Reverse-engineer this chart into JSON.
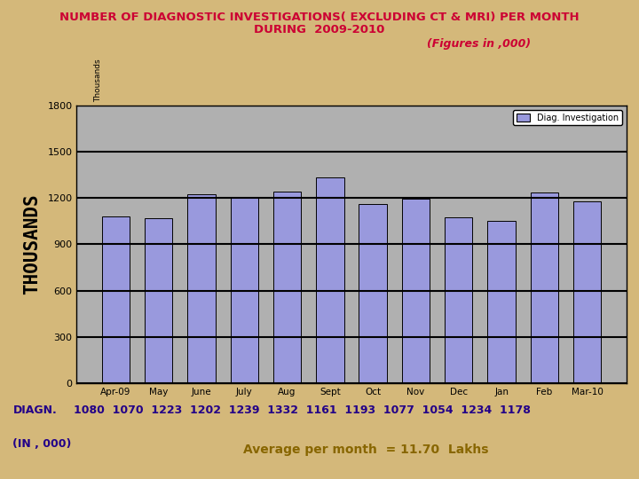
{
  "title_line1": "NUMBER OF DIAGNOSTIC INVESTIGATIONS( EXCLUDING CT & MRI) PER MONTH",
  "title_line2": "DURING  2009-2010",
  "subtitle": "(Figures in ,000)",
  "categories": [
    "Apr-09",
    "May",
    "June",
    "July",
    "Aug",
    "Sept",
    "Oct",
    "Nov",
    "Dec",
    "Jan",
    "Feb",
    "Mar-10"
  ],
  "values": [
    1080,
    1070,
    1223,
    1202,
    1239,
    1332,
    1161,
    1193,
    1077,
    1054,
    1234,
    1178
  ],
  "bar_color": "#9999dd",
  "bar_edge_color": "#000000",
  "ylabel_big": "THOUSANDS",
  "ylabel_small": "Thousands",
  "ylim": [
    0,
    1800
  ],
  "yticks": [
    0,
    300,
    600,
    900,
    1200,
    1500,
    1800
  ],
  "legend_label": "Diag. Investigation",
  "title_color": "#cc0033",
  "subtitle_color": "#cc0033",
  "tick_color": "#000000",
  "diagn_label_color": "#220088",
  "avg_color": "#886600",
  "background_color": "#d4b87a",
  "plot_bg_color": "#b0b0b0",
  "grid_color": "#000000",
  "diagn_label": "DIAGN.",
  "in000_label": "(IN , 000)",
  "avg_text": "Average per month  = 11.70  Lakhs"
}
